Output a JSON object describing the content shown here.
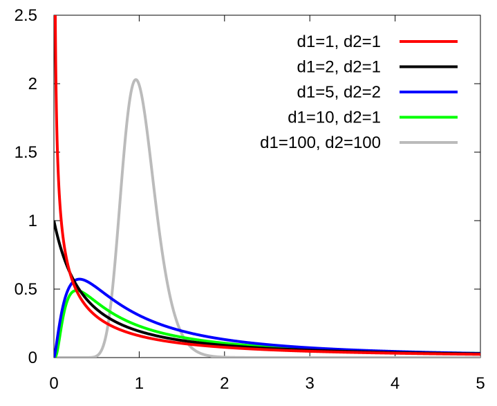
{
  "chart_data": {
    "type": "line",
    "title": "",
    "xlabel": "",
    "ylabel": "",
    "xlim": [
      0,
      5
    ],
    "ylim": [
      0,
      2.5
    ],
    "x_ticks": [
      "0",
      "1",
      "2",
      "3",
      "4",
      "5"
    ],
    "y_ticks": [
      "0",
      "0.5",
      "1",
      "1.5",
      "2",
      "2.5"
    ],
    "grid": false,
    "legend_position": "top-right",
    "series": [
      {
        "name": "d1=1, d2=1",
        "d1": 1,
        "d2": 1,
        "color": "#ff0000",
        "x": [
          0.02,
          0.05,
          0.1,
          0.2,
          0.3,
          0.5,
          0.75,
          1,
          1.5,
          2,
          3,
          4,
          5
        ],
        "y": [
          2.22,
          1.36,
          0.91,
          0.58,
          0.42,
          0.26,
          0.17,
          0.16,
          0.1,
          0.075,
          0.046,
          0.032,
          0.024
        ]
      },
      {
        "name": "d1=2, d2=1",
        "d1": 2,
        "d2": 1,
        "color": "#000000",
        "x": [
          0,
          0.1,
          0.2,
          0.3,
          0.5,
          0.75,
          1,
          1.5,
          2,
          3,
          4,
          5
        ],
        "y": [
          1.0,
          0.75,
          0.58,
          0.47,
          0.33,
          0.23,
          0.19,
          0.13,
          0.096,
          0.063,
          0.044,
          0.033
        ]
      },
      {
        "name": "d1=5, d2=2",
        "d1": 5,
        "d2": 2,
        "color": "#0000ff",
        "x": [
          0,
          0.05,
          0.1,
          0.2,
          0.3,
          0.4,
          0.5,
          0.75,
          1,
          1.5,
          2,
          3,
          4,
          5
        ],
        "y": [
          0,
          0.2,
          0.36,
          0.53,
          0.57,
          0.56,
          0.52,
          0.42,
          0.34,
          0.22,
          0.16,
          0.09,
          0.057,
          0.04
        ]
      },
      {
        "name": "d1=10, d2=1",
        "d1": 10,
        "d2": 1,
        "color": "#00ff00",
        "x": [
          0,
          0.05,
          0.1,
          0.15,
          0.2,
          0.3,
          0.4,
          0.5,
          0.75,
          1,
          1.5,
          2,
          3,
          4,
          5
        ],
        "y": [
          0,
          0.05,
          0.24,
          0.4,
          0.47,
          0.49,
          0.45,
          0.4,
          0.3,
          0.24,
          0.15,
          0.11,
          0.065,
          0.045,
          0.033
        ]
      },
      {
        "name": "d1=100, d2=100",
        "d1": 100,
        "d2": 100,
        "color": "#bbbbbb",
        "x": [
          0,
          0.5,
          0.6,
          0.7,
          0.8,
          0.9,
          1.0,
          1.1,
          1.2,
          1.3,
          1.4,
          1.5,
          1.7,
          2.0,
          5
        ],
        "y": [
          0,
          0.01,
          0.1,
          0.48,
          1.23,
          1.87,
          2.03,
          1.7,
          1.15,
          0.66,
          0.34,
          0.16,
          0.03,
          0.0,
          0
        ]
      }
    ]
  }
}
